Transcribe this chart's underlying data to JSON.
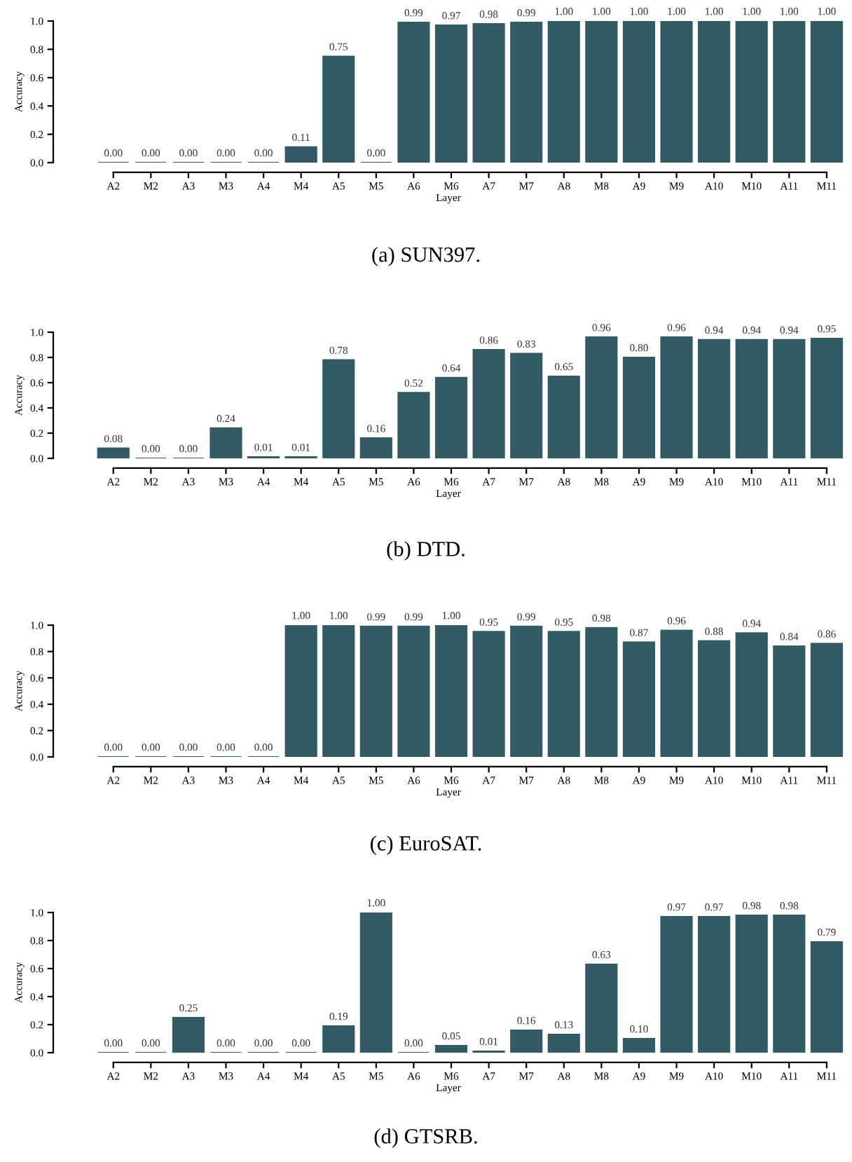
{
  "chart_data": [
    {
      "type": "bar",
      "categories": [
        "A2",
        "M2",
        "A3",
        "M3",
        "A4",
        "M4",
        "A5",
        "M5",
        "A6",
        "M6",
        "A7",
        "M7",
        "A8",
        "M8",
        "A9",
        "M9",
        "A10",
        "M10",
        "A11",
        "M11"
      ],
      "values": [
        0,
        0,
        0,
        0,
        0,
        0.11,
        0.75,
        0,
        0.99,
        0.97,
        0.98,
        0.99,
        1,
        1,
        1,
        1,
        1,
        1,
        1,
        1
      ],
      "value_labels": [
        "0.00",
        "0.00",
        "0.00",
        "0.00",
        "0.00",
        "0.11",
        "0.75",
        "0.00",
        "0.99",
        "0.97",
        "0.98",
        "0.99",
        "1.00",
        "1.00",
        "1.00",
        "1.00",
        "1.00",
        "1.00",
        "1.00",
        "1.00"
      ],
      "color": "#335b66",
      "xlabel": "Layer",
      "ylabel": "Accuracy",
      "ylim": [
        0,
        1
      ],
      "yticks": [
        {
          "value": 0,
          "label": "0.0"
        },
        {
          "value": 0.2,
          "label": "0.2"
        },
        {
          "value": 0.4,
          "label": "0.4"
        },
        {
          "value": 0.6,
          "label": "0.6"
        },
        {
          "value": 0.8,
          "label": "0.8"
        },
        {
          "value": 1,
          "label": "1.0"
        }
      ],
      "grid": false,
      "legend": false,
      "annotations": [
        "(a) SUN397."
      ]
    },
    {
      "type": "bar",
      "categories": [
        "A2",
        "M2",
        "A3",
        "M3",
        "A4",
        "M4",
        "A5",
        "M5",
        "A6",
        "M6",
        "A7",
        "M7",
        "A8",
        "M8",
        "A9",
        "M9",
        "A10",
        "M10",
        "A11",
        "M11"
      ],
      "values": [
        0.08,
        0,
        0,
        0.24,
        0.01,
        0.01,
        0.78,
        0.16,
        0.52,
        0.64,
        0.86,
        0.83,
        0.65,
        0.96,
        0.8,
        0.96,
        0.94,
        0.94,
        0.94,
        0.95
      ],
      "value_labels": [
        "0.08",
        "0.00",
        "0.00",
        "0.24",
        "0.01",
        "0.01",
        "0.78",
        "0.16",
        "0.52",
        "0.64",
        "0.86",
        "0.83",
        "0.65",
        "0.96",
        "0.80",
        "0.96",
        "0.94",
        "0.94",
        "0.94",
        "0.95"
      ],
      "color": "#335b66",
      "xlabel": "Layer",
      "ylabel": "Accuracy",
      "ylim": [
        0,
        1
      ],
      "yticks": [
        {
          "value": 0,
          "label": "0.0"
        },
        {
          "value": 0.2,
          "label": "0.2"
        },
        {
          "value": 0.4,
          "label": "0.4"
        },
        {
          "value": 0.6,
          "label": "0.6"
        },
        {
          "value": 0.8,
          "label": "0.8"
        },
        {
          "value": 1,
          "label": "1.0"
        }
      ],
      "grid": false,
      "legend": false,
      "annotations": [
        "(b) DTD."
      ]
    },
    {
      "type": "bar",
      "categories": [
        "A2",
        "M2",
        "A3",
        "M3",
        "A4",
        "M4",
        "A5",
        "M5",
        "A6",
        "M6",
        "A7",
        "M7",
        "A8",
        "M8",
        "A9",
        "M9",
        "A10",
        "M10",
        "A11",
        "M11"
      ],
      "values": [
        0,
        0,
        0,
        0,
        0,
        1,
        1,
        0.99,
        0.99,
        1,
        0.95,
        0.99,
        0.95,
        0.98,
        0.87,
        0.96,
        0.88,
        0.94,
        0.84,
        0.86
      ],
      "value_labels": [
        "0.00",
        "0.00",
        "0.00",
        "0.00",
        "0.00",
        "1.00",
        "1.00",
        "0.99",
        "0.99",
        "1.00",
        "0.95",
        "0.99",
        "0.95",
        "0.98",
        "0.87",
        "0.96",
        "0.88",
        "0.94",
        "0.84",
        "0.86"
      ],
      "color": "#335b66",
      "xlabel": "Layer",
      "ylabel": "Accuracy",
      "ylim": [
        0,
        1
      ],
      "yticks": [
        {
          "value": 0,
          "label": "0.0"
        },
        {
          "value": 0.2,
          "label": "0.2"
        },
        {
          "value": 0.4,
          "label": "0.4"
        },
        {
          "value": 0.6,
          "label": "0.6"
        },
        {
          "value": 0.8,
          "label": "0.8"
        },
        {
          "value": 1,
          "label": "1.0"
        }
      ],
      "grid": false,
      "legend": false,
      "annotations": [
        "(c) EuroSAT."
      ]
    },
    {
      "type": "bar",
      "categories": [
        "A2",
        "M2",
        "A3",
        "M3",
        "A4",
        "M4",
        "A5",
        "M5",
        "A6",
        "M6",
        "A7",
        "M7",
        "A8",
        "M8",
        "A9",
        "M9",
        "A10",
        "M10",
        "A11",
        "M11"
      ],
      "values": [
        0,
        0,
        0.25,
        0,
        0,
        0,
        0.19,
        1,
        0,
        0.05,
        0.01,
        0.16,
        0.13,
        0.63,
        0.1,
        0.97,
        0.97,
        0.98,
        0.98,
        0.79
      ],
      "value_labels": [
        "0.00",
        "0.00",
        "0.25",
        "0.00",
        "0.00",
        "0.00",
        "0.19",
        "1.00",
        "0.00",
        "0.05",
        "0.01",
        "0.16",
        "0.13",
        "0.63",
        "0.10",
        "0.97",
        "0.97",
        "0.98",
        "0.98",
        "0.79"
      ],
      "color": "#335b66",
      "xlabel": "Layer",
      "ylabel": "Accuracy",
      "ylim": [
        0,
        1
      ],
      "yticks": [
        {
          "value": 0,
          "label": "0.0"
        },
        {
          "value": 0.2,
          "label": "0.2"
        },
        {
          "value": 0.4,
          "label": "0.4"
        },
        {
          "value": 0.6,
          "label": "0.6"
        },
        {
          "value": 0.8,
          "label": "0.8"
        },
        {
          "value": 1,
          "label": "1.0"
        }
      ],
      "grid": false,
      "legend": false,
      "annotations": [
        "(d) GTSRB."
      ]
    }
  ]
}
